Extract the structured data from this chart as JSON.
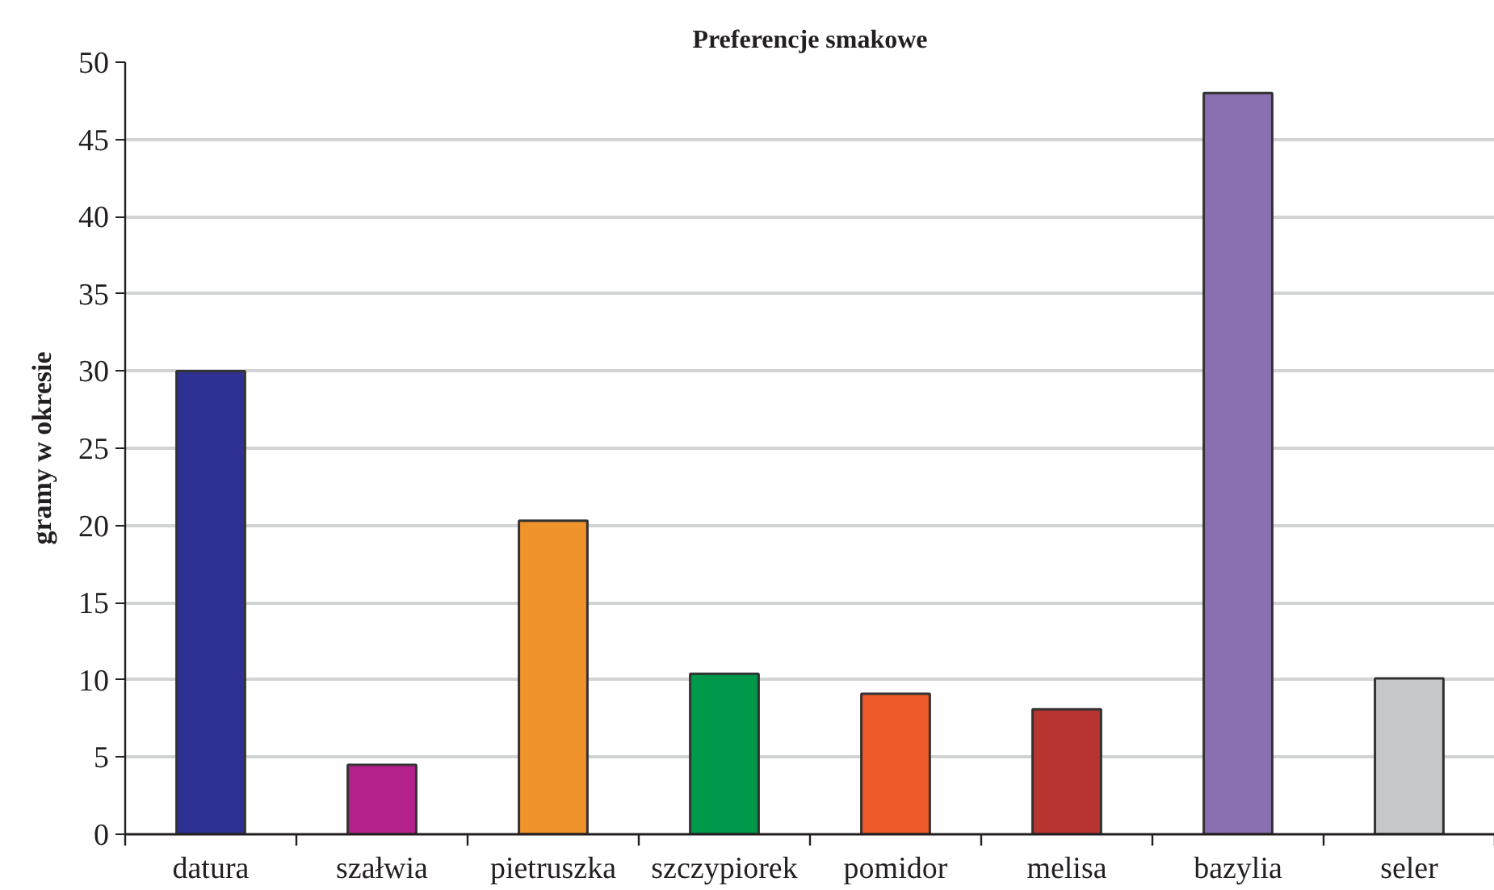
{
  "chart_data": {
    "type": "bar",
    "title": "Preferencje smakowe",
    "ylabel": "gramy w okresie",
    "categories": [
      "datura",
      "szałwia",
      "pietruszka",
      "szczypiorek",
      "pomidor",
      "melisa",
      "bazylia",
      "seler"
    ],
    "values": [
      30,
      4.5,
      20.3,
      10.4,
      9.1,
      8.1,
      48,
      10.1
    ],
    "colors": [
      "#2e3192",
      "#b5218a",
      "#f0932b",
      "#00994c",
      "#ef5a2a",
      "#b83431",
      "#8a70b0",
      "#c6c7c9"
    ],
    "ylim": [
      0,
      50
    ],
    "yticks": [
      0,
      5,
      10,
      15,
      20,
      25,
      30,
      35,
      40,
      45,
      50
    ],
    "grid": "y"
  }
}
